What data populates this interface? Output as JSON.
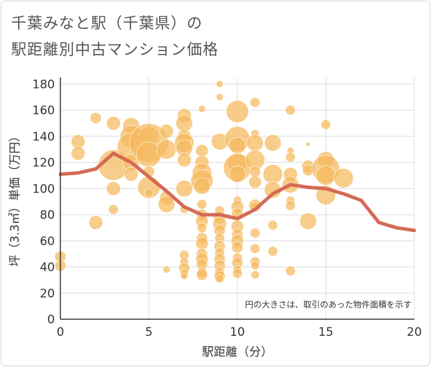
{
  "title_line1": "千葉みなと駅（千葉県）の",
  "title_line2": "駅距離別中古マンション価格",
  "chart_data": {
    "type": "scatter",
    "xlabel": "駅距離（分）",
    "ylabel": "坪（3.3㎡）単価（万円）",
    "xlim": [
      0,
      20
    ],
    "ylim": [
      0,
      185
    ],
    "xticks": [
      0,
      5,
      10,
      15,
      20
    ],
    "yticks": [
      0,
      20,
      40,
      60,
      80,
      100,
      120,
      140,
      160,
      180
    ],
    "grid": true,
    "note": "円の大きさは、取引のあった物件面積を示す",
    "colors": {
      "bubble": "#f5b85c",
      "line": "#d46a55"
    },
    "bubbles": [
      {
        "x": 0,
        "y": 48,
        "s": 8
      },
      {
        "x": 0,
        "y": 41,
        "s": 8
      },
      {
        "x": 1,
        "y": 136,
        "s": 10
      },
      {
        "x": 1,
        "y": 127,
        "s": 10
      },
      {
        "x": 2,
        "y": 154,
        "s": 8
      },
      {
        "x": 2,
        "y": 74,
        "s": 10
      },
      {
        "x": 3,
        "y": 150,
        "s": 10
      },
      {
        "x": 3,
        "y": 118,
        "s": 22
      },
      {
        "x": 3,
        "y": 100,
        "s": 10
      },
      {
        "x": 3,
        "y": 84,
        "s": 7
      },
      {
        "x": 4,
        "y": 148,
        "s": 12
      },
      {
        "x": 4,
        "y": 140,
        "s": 16
      },
      {
        "x": 4,
        "y": 132,
        "s": 20
      },
      {
        "x": 4,
        "y": 120,
        "s": 12
      },
      {
        "x": 4,
        "y": 111,
        "s": 10
      },
      {
        "x": 5,
        "y": 140,
        "s": 14
      },
      {
        "x": 5,
        "y": 135,
        "s": 28
      },
      {
        "x": 5,
        "y": 126,
        "s": 18
      },
      {
        "x": 5,
        "y": 113,
        "s": 8
      },
      {
        "x": 5,
        "y": 101,
        "s": 16
      },
      {
        "x": 5,
        "y": 97,
        "s": 6
      },
      {
        "x": 6,
        "y": 144,
        "s": 10
      },
      {
        "x": 6,
        "y": 130,
        "s": 14
      },
      {
        "x": 6,
        "y": 93,
        "s": 10
      },
      {
        "x": 6,
        "y": 88,
        "s": 12
      },
      {
        "x": 6,
        "y": 38,
        "s": 5
      },
      {
        "x": 7,
        "y": 156,
        "s": 10
      },
      {
        "x": 7,
        "y": 150,
        "s": 12
      },
      {
        "x": 7,
        "y": 140,
        "s": 10
      },
      {
        "x": 7,
        "y": 135,
        "s": 14
      },
      {
        "x": 7,
        "y": 131,
        "s": 12
      },
      {
        "x": 7,
        "y": 122,
        "s": 10
      },
      {
        "x": 7,
        "y": 100,
        "s": 12
      },
      {
        "x": 7,
        "y": 84,
        "s": 6
      },
      {
        "x": 7,
        "y": 49,
        "s": 7
      },
      {
        "x": 7,
        "y": 44,
        "s": 6
      },
      {
        "x": 7,
        "y": 39,
        "s": 8
      },
      {
        "x": 7,
        "y": 35,
        "s": 6
      },
      {
        "x": 7,
        "y": 33,
        "s": 5
      },
      {
        "x": 8,
        "y": 161,
        "s": 5
      },
      {
        "x": 8,
        "y": 129,
        "s": 9
      },
      {
        "x": 8,
        "y": 120,
        "s": 10
      },
      {
        "x": 8,
        "y": 112,
        "s": 14
      },
      {
        "x": 8,
        "y": 106,
        "s": 16
      },
      {
        "x": 8,
        "y": 102,
        "s": 12
      },
      {
        "x": 8,
        "y": 88,
        "s": 7
      },
      {
        "x": 8,
        "y": 80,
        "s": 8
      },
      {
        "x": 8,
        "y": 75,
        "s": 9
      },
      {
        "x": 8,
        "y": 70,
        "s": 7
      },
      {
        "x": 8,
        "y": 62,
        "s": 8
      },
      {
        "x": 8,
        "y": 58,
        "s": 9
      },
      {
        "x": 8,
        "y": 50,
        "s": 8
      },
      {
        "x": 8,
        "y": 46,
        "s": 9
      },
      {
        "x": 8,
        "y": 42,
        "s": 8
      },
      {
        "x": 8,
        "y": 36,
        "s": 7
      },
      {
        "x": 8,
        "y": 34,
        "s": 8
      },
      {
        "x": 9,
        "y": 180,
        "s": 5
      },
      {
        "x": 9,
        "y": 170,
        "s": 5
      },
      {
        "x": 9,
        "y": 136,
        "s": 12
      },
      {
        "x": 9,
        "y": 83,
        "s": 7
      },
      {
        "x": 9,
        "y": 78,
        "s": 9
      },
      {
        "x": 9,
        "y": 73,
        "s": 10
      },
      {
        "x": 9,
        "y": 68,
        "s": 8
      },
      {
        "x": 9,
        "y": 62,
        "s": 7
      },
      {
        "x": 9,
        "y": 56,
        "s": 8
      },
      {
        "x": 9,
        "y": 51,
        "s": 7
      },
      {
        "x": 9,
        "y": 46,
        "s": 8
      },
      {
        "x": 9,
        "y": 41,
        "s": 8
      },
      {
        "x": 9,
        "y": 36,
        "s": 7
      },
      {
        "x": 9,
        "y": 33,
        "s": 8
      },
      {
        "x": 9,
        "y": 31,
        "s": 6
      },
      {
        "x": 10,
        "y": 159,
        "s": 16
      },
      {
        "x": 10,
        "y": 138,
        "s": 18
      },
      {
        "x": 10,
        "y": 133,
        "s": 12
      },
      {
        "x": 10,
        "y": 120,
        "s": 14
      },
      {
        "x": 10,
        "y": 116,
        "s": 20
      },
      {
        "x": 10,
        "y": 111,
        "s": 12
      },
      {
        "x": 10,
        "y": 91,
        "s": 6
      },
      {
        "x": 10,
        "y": 86,
        "s": 9
      },
      {
        "x": 10,
        "y": 81,
        "s": 8
      },
      {
        "x": 10,
        "y": 71,
        "s": 9
      },
      {
        "x": 10,
        "y": 65,
        "s": 8
      },
      {
        "x": 10,
        "y": 60,
        "s": 9
      },
      {
        "x": 10,
        "y": 55,
        "s": 8
      },
      {
        "x": 10,
        "y": 47,
        "s": 7
      },
      {
        "x": 10,
        "y": 43,
        "s": 8
      },
      {
        "x": 10,
        "y": 38,
        "s": 6
      },
      {
        "x": 10,
        "y": 35,
        "s": 7
      },
      {
        "x": 11,
        "y": 166,
        "s": 7
      },
      {
        "x": 11,
        "y": 142,
        "s": 6
      },
      {
        "x": 11,
        "y": 135,
        "s": 12
      },
      {
        "x": 11,
        "y": 122,
        "s": 14
      },
      {
        "x": 11,
        "y": 113,
        "s": 8
      },
      {
        "x": 11,
        "y": 105,
        "s": 9
      },
      {
        "x": 11,
        "y": 87,
        "s": 9
      },
      {
        "x": 11,
        "y": 86,
        "s": 7
      },
      {
        "x": 11,
        "y": 66,
        "s": 7
      },
      {
        "x": 11,
        "y": 54,
        "s": 7
      },
      {
        "x": 11,
        "y": 44,
        "s": 7
      },
      {
        "x": 11,
        "y": 41,
        "s": 6
      },
      {
        "x": 11,
        "y": 34,
        "s": 6
      },
      {
        "x": 12,
        "y": 135,
        "s": 12
      },
      {
        "x": 12,
        "y": 111,
        "s": 14
      },
      {
        "x": 12,
        "y": 99,
        "s": 12
      },
      {
        "x": 12,
        "y": 72,
        "s": 7
      },
      {
        "x": 12,
        "y": 52,
        "s": 7
      },
      {
        "x": 13,
        "y": 160,
        "s": 7
      },
      {
        "x": 13,
        "y": 129,
        "s": 5
      },
      {
        "x": 13,
        "y": 124,
        "s": 7
      },
      {
        "x": 13,
        "y": 111,
        "s": 10
      },
      {
        "x": 13,
        "y": 103,
        "s": 12
      },
      {
        "x": 13,
        "y": 91,
        "s": 6
      },
      {
        "x": 13,
        "y": 87,
        "s": 7
      },
      {
        "x": 13,
        "y": 37,
        "s": 7
      },
      {
        "x": 14,
        "y": 134,
        "s": 3
      },
      {
        "x": 14,
        "y": 117,
        "s": 9
      },
      {
        "x": 14,
        "y": 114,
        "s": 8
      },
      {
        "x": 14,
        "y": 75,
        "s": 12
      },
      {
        "x": 15,
        "y": 149,
        "s": 7
      },
      {
        "x": 15,
        "y": 122,
        "s": 12
      },
      {
        "x": 15,
        "y": 115,
        "s": 20
      },
      {
        "x": 15,
        "y": 110,
        "s": 14
      },
      {
        "x": 15,
        "y": 95,
        "s": 14
      },
      {
        "x": 16,
        "y": 108,
        "s": 14
      }
    ],
    "line": {
      "x": [
        0,
        1,
        2,
        3,
        4,
        5,
        6,
        7,
        8,
        9,
        10,
        11,
        12,
        13,
        14,
        15,
        16,
        17,
        18,
        19,
        20
      ],
      "y": [
        111,
        112,
        115,
        127,
        120,
        109,
        98,
        86,
        80,
        80,
        77,
        84,
        96,
        103,
        101,
        100,
        96,
        91,
        74,
        70,
        68
      ]
    }
  }
}
